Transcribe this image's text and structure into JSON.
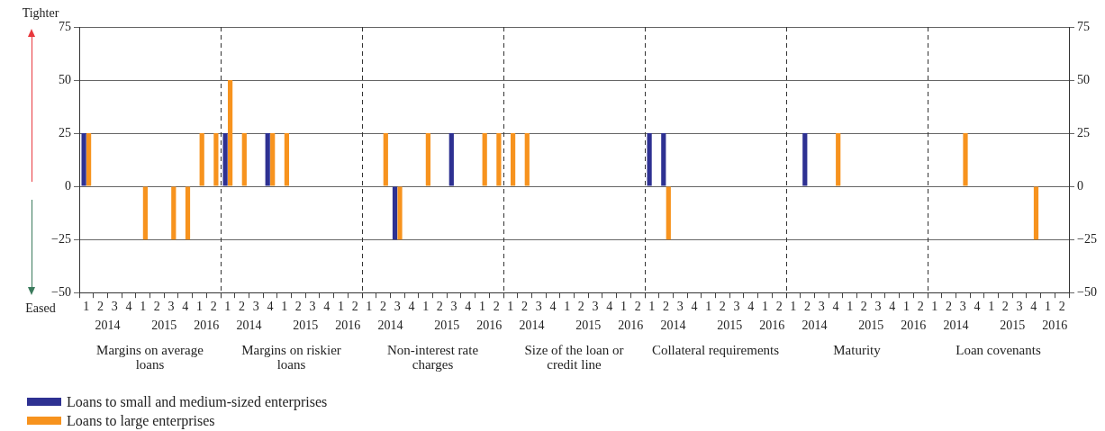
{
  "chart_data": [
    {
      "type": "bar",
      "xlabel": "Margins on average loans",
      "categories": [
        "1",
        "2",
        "3",
        "4",
        "1",
        "2",
        "3",
        "4",
        "1",
        "2"
      ],
      "annotations": [
        "2014",
        "2015",
        "2016",
        "Tighter",
        "Eased"
      ],
      "ylim": [
        -50,
        75
      ],
      "yticks": [
        {
          "value": -50,
          "label": "−50"
        },
        {
          "value": -25,
          "label": "−25"
        },
        0,
        25,
        50,
        75
      ],
      "grid": "y",
      "legend": "bottom right",
      "series": [
        {
          "name": "Loans to small and medium-sized enterprises",
          "color": "#2e3192",
          "values": [
            25,
            0,
            0,
            0,
            0,
            0,
            0,
            0,
            0,
            0
          ]
        },
        {
          "name": "Loans to large enterprises",
          "color": "#f7931e",
          "values": [
            25,
            0,
            0,
            0,
            -25,
            0,
            -25,
            -25,
            25,
            25
          ]
        }
      ]
    },
    {
      "type": "bar",
      "xlabel": "Margins on riskier loans",
      "categories": [
        "1",
        "2",
        "3",
        "4",
        "1",
        "2",
        "3",
        "4",
        "1",
        "2"
      ],
      "annotations": [
        "2014",
        "2015",
        "2016"
      ],
      "ylim": [
        -50,
        75
      ],
      "yticks": [
        -50,
        -25,
        0,
        25,
        50,
        75
      ],
      "grid": "y",
      "tick_labels": "x",
      "series": [
        {
          "color": "#2e3192",
          "values": [
            25,
            0,
            0,
            25,
            0,
            0,
            0,
            0,
            0,
            0
          ]
        },
        {
          "color": "#f7931e",
          "values": [
            50,
            25,
            0,
            25,
            25,
            0,
            0,
            0,
            0,
            0
          ]
        }
      ]
    },
    {
      "type": "bar",
      "xlabel": "Non-interest rate charges",
      "categories": [
        "1",
        "2",
        "3",
        "4",
        "1",
        "2",
        "3",
        "4",
        "1",
        "2"
      ],
      "annotations": [
        "2014",
        "2015",
        "2016"
      ],
      "ylim": [
        -50,
        75
      ],
      "yticks": [
        -50,
        -25,
        0,
        25,
        50,
        75
      ],
      "grid": "y",
      "tick_labels": "x",
      "series": [
        {
          "color": "#2e3192",
          "values": [
            0,
            0,
            -25,
            0,
            0,
            0,
            25,
            0,
            0,
            0
          ]
        },
        {
          "color": "#f7931e",
          "values": [
            0,
            25,
            -25,
            0,
            25,
            0,
            0,
            0,
            25,
            25
          ]
        }
      ]
    },
    {
      "type": "bar",
      "xlabel": "Size of the loan or credit line",
      "categories": [
        "1",
        "2",
        "3",
        "4",
        "1",
        "2",
        "3",
        "4",
        "1",
        "2"
      ],
      "annotations": [
        "2014",
        "2015",
        "2016"
      ],
      "ylim": [
        -50,
        75
      ],
      "yticks": [
        -50,
        -25,
        0,
        25,
        50,
        75
      ],
      "grid": "y",
      "tick_labels": "x",
      "series": [
        {
          "color": "#2e3192",
          "values": [
            0,
            0,
            0,
            0,
            0,
            0,
            0,
            0,
            0,
            0
          ]
        },
        {
          "color": "#f7931e",
          "values": [
            25,
            25,
            0,
            0,
            0,
            0,
            0,
            0,
            0,
            0
          ]
        }
      ]
    },
    {
      "type": "bar",
      "xlabel": "Collateral requirements",
      "categories": [
        "1",
        "2",
        "3",
        "4",
        "1",
        "2",
        "3",
        "4",
        "1",
        "2"
      ],
      "annotations": [
        "2014",
        "2015",
        "2016"
      ],
      "ylim": [
        -50,
        75
      ],
      "yticks": [
        -50,
        -25,
        0,
        25,
        50,
        75
      ],
      "grid": "y",
      "tick_labels": "x",
      "series": [
        {
          "color": "#2e3192",
          "values": [
            25,
            25,
            0,
            0,
            0,
            0,
            0,
            0,
            0,
            0
          ]
        },
        {
          "color": "#f7931e",
          "values": [
            0,
            -25,
            0,
            0,
            0,
            0,
            0,
            0,
            0,
            0
          ]
        }
      ]
    },
    {
      "type": "bar",
      "xlabel": "Maturity",
      "categories": [
        "1",
        "2",
        "3",
        "4",
        "1",
        "2",
        "3",
        "4",
        "1",
        "2"
      ],
      "annotations": [
        "2014",
        "2015",
        "2016"
      ],
      "ylim": [
        -50,
        75
      ],
      "yticks": [
        -50,
        -25,
        0,
        25,
        50,
        75
      ],
      "grid": "y",
      "tick_labels": "x",
      "series": [
        {
          "color": "#2e3192",
          "values": [
            0,
            25,
            0,
            0,
            0,
            0,
            0,
            0,
            0,
            0
          ]
        },
        {
          "color": "#f7931e",
          "values": [
            0,
            0,
            0,
            25,
            0,
            0,
            0,
            0,
            0,
            0
          ]
        }
      ]
    },
    {
      "type": "bar",
      "xlabel": "Loan covenants",
      "categories": [
        "1",
        "2",
        "3",
        "4",
        "1",
        "2",
        "3",
        "4",
        "1",
        "2"
      ],
      "annotations": [
        "2014",
        "2015",
        "2016"
      ],
      "y2lim": [
        -50,
        75
      ],
      "y2ticks": [
        {
          "value": -50,
          "label": "−50"
        },
        {
          "value": -25,
          "label": "−25"
        },
        0,
        25,
        50,
        75
      ],
      "grid": "y",
      "series": [
        {
          "color": "#2e3192",
          "axis": "y2",
          "values": [
            0,
            0,
            0,
            0,
            0,
            0,
            0,
            0,
            0,
            0
          ]
        },
        {
          "color": "#f7931e",
          "axis": "y2",
          "values": [
            0,
            0,
            25,
            0,
            0,
            0,
            0,
            -25,
            0,
            0
          ]
        }
      ]
    }
  ]
}
